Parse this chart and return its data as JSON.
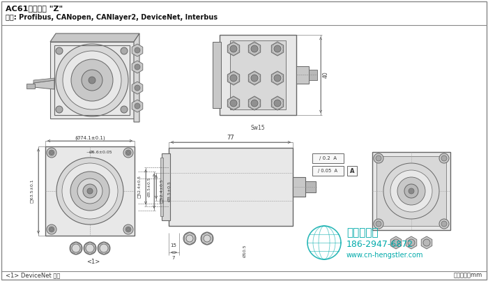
{
  "title_line1": "AC61电缆连接 \"Z\"",
  "title_line2": "接口: Profibus, CANopen, CANlayer2, DeviceNet, Interbus",
  "footer_left": "<1> DeviceNet 没有",
  "footer_right": "尺寸单位：mm",
  "watermark_phone": "186-2947-6872",
  "watermark_web": "www.cn-hengstler.com",
  "watermark_company": "西安德伍拓",
  "bg_color": "#ffffff",
  "drawing_color": "#666666",
  "dim_color": "#555555",
  "body_fill": "#e8e8e8",
  "body_fill2": "#d8d8d8",
  "body_fill3": "#c8c8c8",
  "body_fill4": "#b8b8b8",
  "watermark_color": "#00aaaa"
}
